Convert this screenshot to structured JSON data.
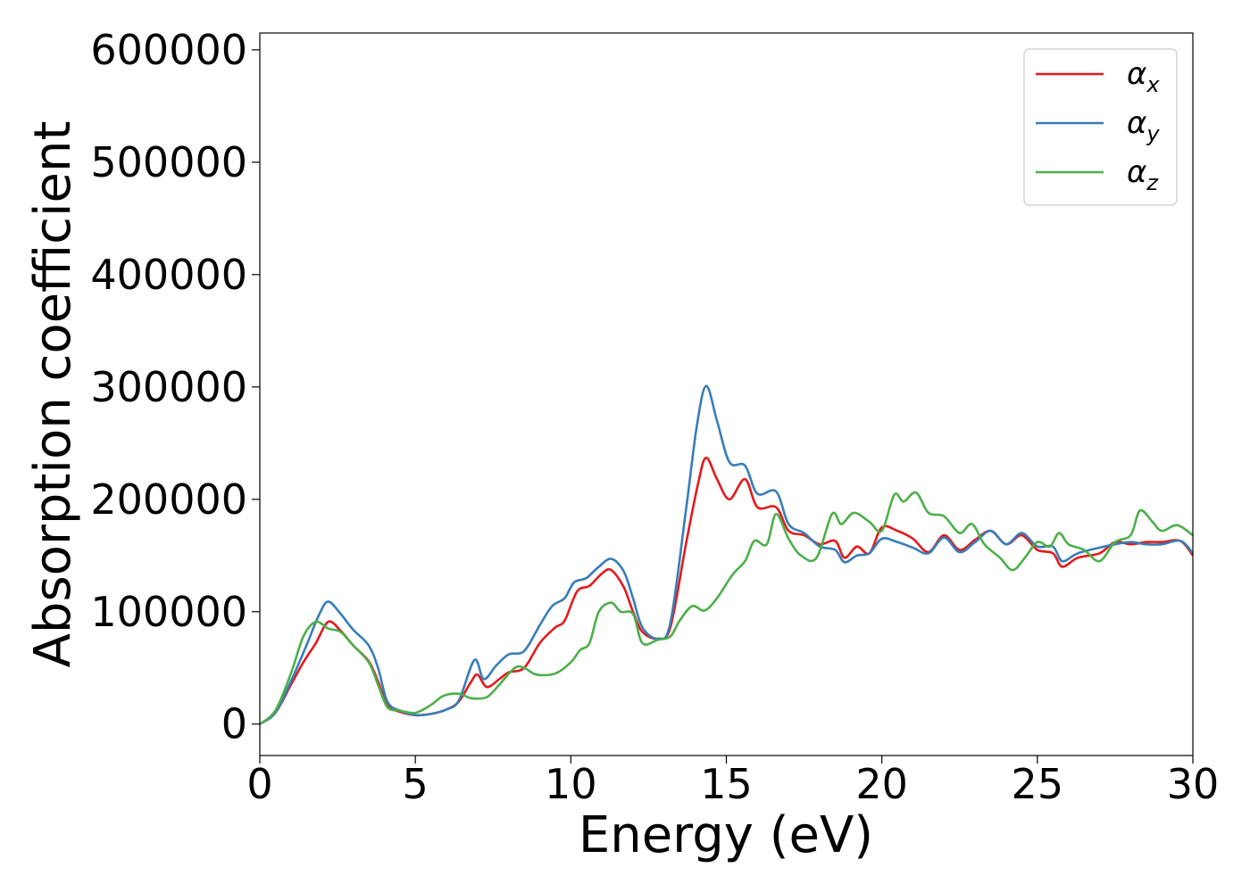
{
  "chart_data": {
    "type": "line",
    "xlabel": "Energy (eV)",
    "ylabel": "Absorption coefficient",
    "xlim": [
      0,
      30
    ],
    "ylim": [
      -28000,
      615000
    ],
    "xticks": [
      0,
      5,
      10,
      15,
      20,
      25,
      30
    ],
    "xtick_labels": [
      "0",
      "5",
      "10",
      "15",
      "20",
      "25",
      "30"
    ],
    "yticks": [
      0,
      100000,
      200000,
      300000,
      400000,
      500000,
      600000
    ],
    "ytick_labels": [
      "0",
      "100000",
      "200000",
      "300000",
      "400000",
      "500000",
      "600000"
    ],
    "grid": false,
    "legend_position": "top-right",
    "series": [
      {
        "name": "αx",
        "legend": {
          "base": "α",
          "sub": "x"
        },
        "color": "#e41a1c",
        "points": [
          [
            0,
            0
          ],
          [
            0.5,
            10000
          ],
          [
            1.0,
            35000
          ],
          [
            1.4,
            55000
          ],
          [
            1.8,
            72000
          ],
          [
            2.2,
            91000
          ],
          [
            2.6,
            83000
          ],
          [
            3.0,
            70000
          ],
          [
            3.5,
            56000
          ],
          [
            3.8,
            38000
          ],
          [
            4.1,
            17000
          ],
          [
            4.5,
            11000
          ],
          [
            5.0,
            8000
          ],
          [
            5.5,
            9000
          ],
          [
            6.0,
            13000
          ],
          [
            6.4,
            20000
          ],
          [
            6.8,
            38000
          ],
          [
            7.0,
            44000
          ],
          [
            7.3,
            33000
          ],
          [
            7.7,
            40000
          ],
          [
            8.0,
            46000
          ],
          [
            8.5,
            50000
          ],
          [
            9.0,
            72000
          ],
          [
            9.5,
            86000
          ],
          [
            9.8,
            92000
          ],
          [
            10.2,
            118000
          ],
          [
            10.6,
            123000
          ],
          [
            11.0,
            134000
          ],
          [
            11.3,
            137000
          ],
          [
            11.7,
            122000
          ],
          [
            12.0,
            100000
          ],
          [
            12.3,
            82000
          ],
          [
            12.8,
            76000
          ],
          [
            13.2,
            86000
          ],
          [
            13.7,
            160000
          ],
          [
            14.1,
            215000
          ],
          [
            14.35,
            237000
          ],
          [
            14.7,
            218000
          ],
          [
            15.1,
            200000
          ],
          [
            15.6,
            218000
          ],
          [
            16.0,
            193000
          ],
          [
            16.6,
            193000
          ],
          [
            17.0,
            172000
          ],
          [
            17.5,
            168000
          ],
          [
            18.0,
            160000
          ],
          [
            18.5,
            163000
          ],
          [
            18.8,
            148000
          ],
          [
            19.2,
            158000
          ],
          [
            19.6,
            152000
          ],
          [
            20.0,
            175000
          ],
          [
            20.5,
            172000
          ],
          [
            21.0,
            165000
          ],
          [
            21.5,
            153000
          ],
          [
            22.0,
            168000
          ],
          [
            22.5,
            155000
          ],
          [
            23.0,
            164000
          ],
          [
            23.5,
            172000
          ],
          [
            24.0,
            160000
          ],
          [
            24.5,
            168000
          ],
          [
            25.0,
            155000
          ],
          [
            25.5,
            152000
          ],
          [
            25.8,
            140000
          ],
          [
            26.3,
            148000
          ],
          [
            27.0,
            152000
          ],
          [
            27.5,
            162000
          ],
          [
            28.0,
            160000
          ],
          [
            28.5,
            162000
          ],
          [
            29.0,
            162000
          ],
          [
            29.6,
            163000
          ],
          [
            30.0,
            150000
          ]
        ]
      },
      {
        "name": "αy",
        "legend": {
          "base": "α",
          "sub": "y"
        },
        "color": "#377eb8",
        "points": [
          [
            0,
            0
          ],
          [
            0.5,
            10000
          ],
          [
            1.0,
            38000
          ],
          [
            1.5,
            70000
          ],
          [
            1.9,
            97000
          ],
          [
            2.2,
            109000
          ],
          [
            2.6,
            98000
          ],
          [
            3.0,
            84000
          ],
          [
            3.5,
            70000
          ],
          [
            3.8,
            50000
          ],
          [
            4.1,
            20000
          ],
          [
            4.5,
            12000
          ],
          [
            5.0,
            8000
          ],
          [
            5.5,
            9000
          ],
          [
            6.0,
            13000
          ],
          [
            6.4,
            21000
          ],
          [
            6.9,
            57000
          ],
          [
            7.2,
            40000
          ],
          [
            7.6,
            52000
          ],
          [
            8.0,
            62000
          ],
          [
            8.5,
            65000
          ],
          [
            9.0,
            88000
          ],
          [
            9.4,
            105000
          ],
          [
            9.8,
            112000
          ],
          [
            10.1,
            126000
          ],
          [
            10.5,
            130000
          ],
          [
            10.9,
            140000
          ],
          [
            11.3,
            147000
          ],
          [
            11.7,
            136000
          ],
          [
            12.0,
            112000
          ],
          [
            12.3,
            86000
          ],
          [
            12.8,
            76000
          ],
          [
            13.2,
            90000
          ],
          [
            13.7,
            190000
          ],
          [
            14.05,
            265000
          ],
          [
            14.35,
            301000
          ],
          [
            14.7,
            270000
          ],
          [
            15.1,
            233000
          ],
          [
            15.6,
            230000
          ],
          [
            16.0,
            205000
          ],
          [
            16.6,
            207000
          ],
          [
            17.0,
            178000
          ],
          [
            17.5,
            170000
          ],
          [
            18.0,
            158000
          ],
          [
            18.5,
            155000
          ],
          [
            18.8,
            144000
          ],
          [
            19.2,
            150000
          ],
          [
            19.6,
            152000
          ],
          [
            20.0,
            165000
          ],
          [
            20.5,
            162000
          ],
          [
            21.0,
            157000
          ],
          [
            21.5,
            152000
          ],
          [
            22.0,
            166000
          ],
          [
            22.5,
            153000
          ],
          [
            23.0,
            162000
          ],
          [
            23.5,
            172000
          ],
          [
            24.0,
            160000
          ],
          [
            24.5,
            170000
          ],
          [
            25.0,
            158000
          ],
          [
            25.5,
            158000
          ],
          [
            25.8,
            145000
          ],
          [
            26.3,
            152000
          ],
          [
            27.0,
            157000
          ],
          [
            27.5,
            160000
          ],
          [
            28.0,
            162000
          ],
          [
            28.5,
            160000
          ],
          [
            29.0,
            160000
          ],
          [
            29.6,
            163000
          ],
          [
            30.0,
            152000
          ]
        ]
      },
      {
        "name": "αz",
        "legend": {
          "base": "α",
          "sub": "z"
        },
        "color": "#4daf4a",
        "points": [
          [
            0,
            0
          ],
          [
            0.5,
            12000
          ],
          [
            1.0,
            45000
          ],
          [
            1.4,
            78000
          ],
          [
            1.8,
            91000
          ],
          [
            2.2,
            85000
          ],
          [
            2.6,
            82000
          ],
          [
            3.0,
            70000
          ],
          [
            3.5,
            55000
          ],
          [
            3.8,
            35000
          ],
          [
            4.1,
            15000
          ],
          [
            4.5,
            12000
          ],
          [
            5.0,
            10000
          ],
          [
            5.5,
            17000
          ],
          [
            5.9,
            25000
          ],
          [
            6.4,
            27000
          ],
          [
            6.8,
            23000
          ],
          [
            7.3,
            24000
          ],
          [
            7.7,
            35000
          ],
          [
            8.2,
            50000
          ],
          [
            8.5,
            50000
          ],
          [
            8.9,
            44000
          ],
          [
            9.5,
            45000
          ],
          [
            10.0,
            55000
          ],
          [
            10.3,
            66000
          ],
          [
            10.6,
            72000
          ],
          [
            10.9,
            100000
          ],
          [
            11.3,
            108000
          ],
          [
            11.6,
            100000
          ],
          [
            12.0,
            98000
          ],
          [
            12.3,
            72000
          ],
          [
            12.8,
            75000
          ],
          [
            13.2,
            78000
          ],
          [
            13.5,
            92000
          ],
          [
            13.9,
            105000
          ],
          [
            14.3,
            101000
          ],
          [
            14.7,
            112000
          ],
          [
            15.2,
            133000
          ],
          [
            15.6,
            145000
          ],
          [
            15.9,
            163000
          ],
          [
            16.3,
            160000
          ],
          [
            16.6,
            187000
          ],
          [
            17.0,
            165000
          ],
          [
            17.4,
            150000
          ],
          [
            17.9,
            148000
          ],
          [
            18.4,
            187000
          ],
          [
            18.7,
            178000
          ],
          [
            19.1,
            188000
          ],
          [
            19.6,
            180000
          ],
          [
            20.0,
            172000
          ],
          [
            20.4,
            204000
          ],
          [
            20.7,
            198000
          ],
          [
            21.1,
            206000
          ],
          [
            21.5,
            188000
          ],
          [
            22.0,
            185000
          ],
          [
            22.5,
            170000
          ],
          [
            22.9,
            178000
          ],
          [
            23.3,
            160000
          ],
          [
            23.8,
            148000
          ],
          [
            24.2,
            137000
          ],
          [
            24.6,
            148000
          ],
          [
            25.0,
            162000
          ],
          [
            25.4,
            158000
          ],
          [
            25.7,
            170000
          ],
          [
            26.0,
            160000
          ],
          [
            26.5,
            155000
          ],
          [
            27.0,
            145000
          ],
          [
            27.5,
            162000
          ],
          [
            28.0,
            168000
          ],
          [
            28.3,
            190000
          ],
          [
            28.7,
            180000
          ],
          [
            29.0,
            172000
          ],
          [
            29.5,
            177000
          ],
          [
            30.0,
            168000
          ]
        ]
      }
    ]
  }
}
